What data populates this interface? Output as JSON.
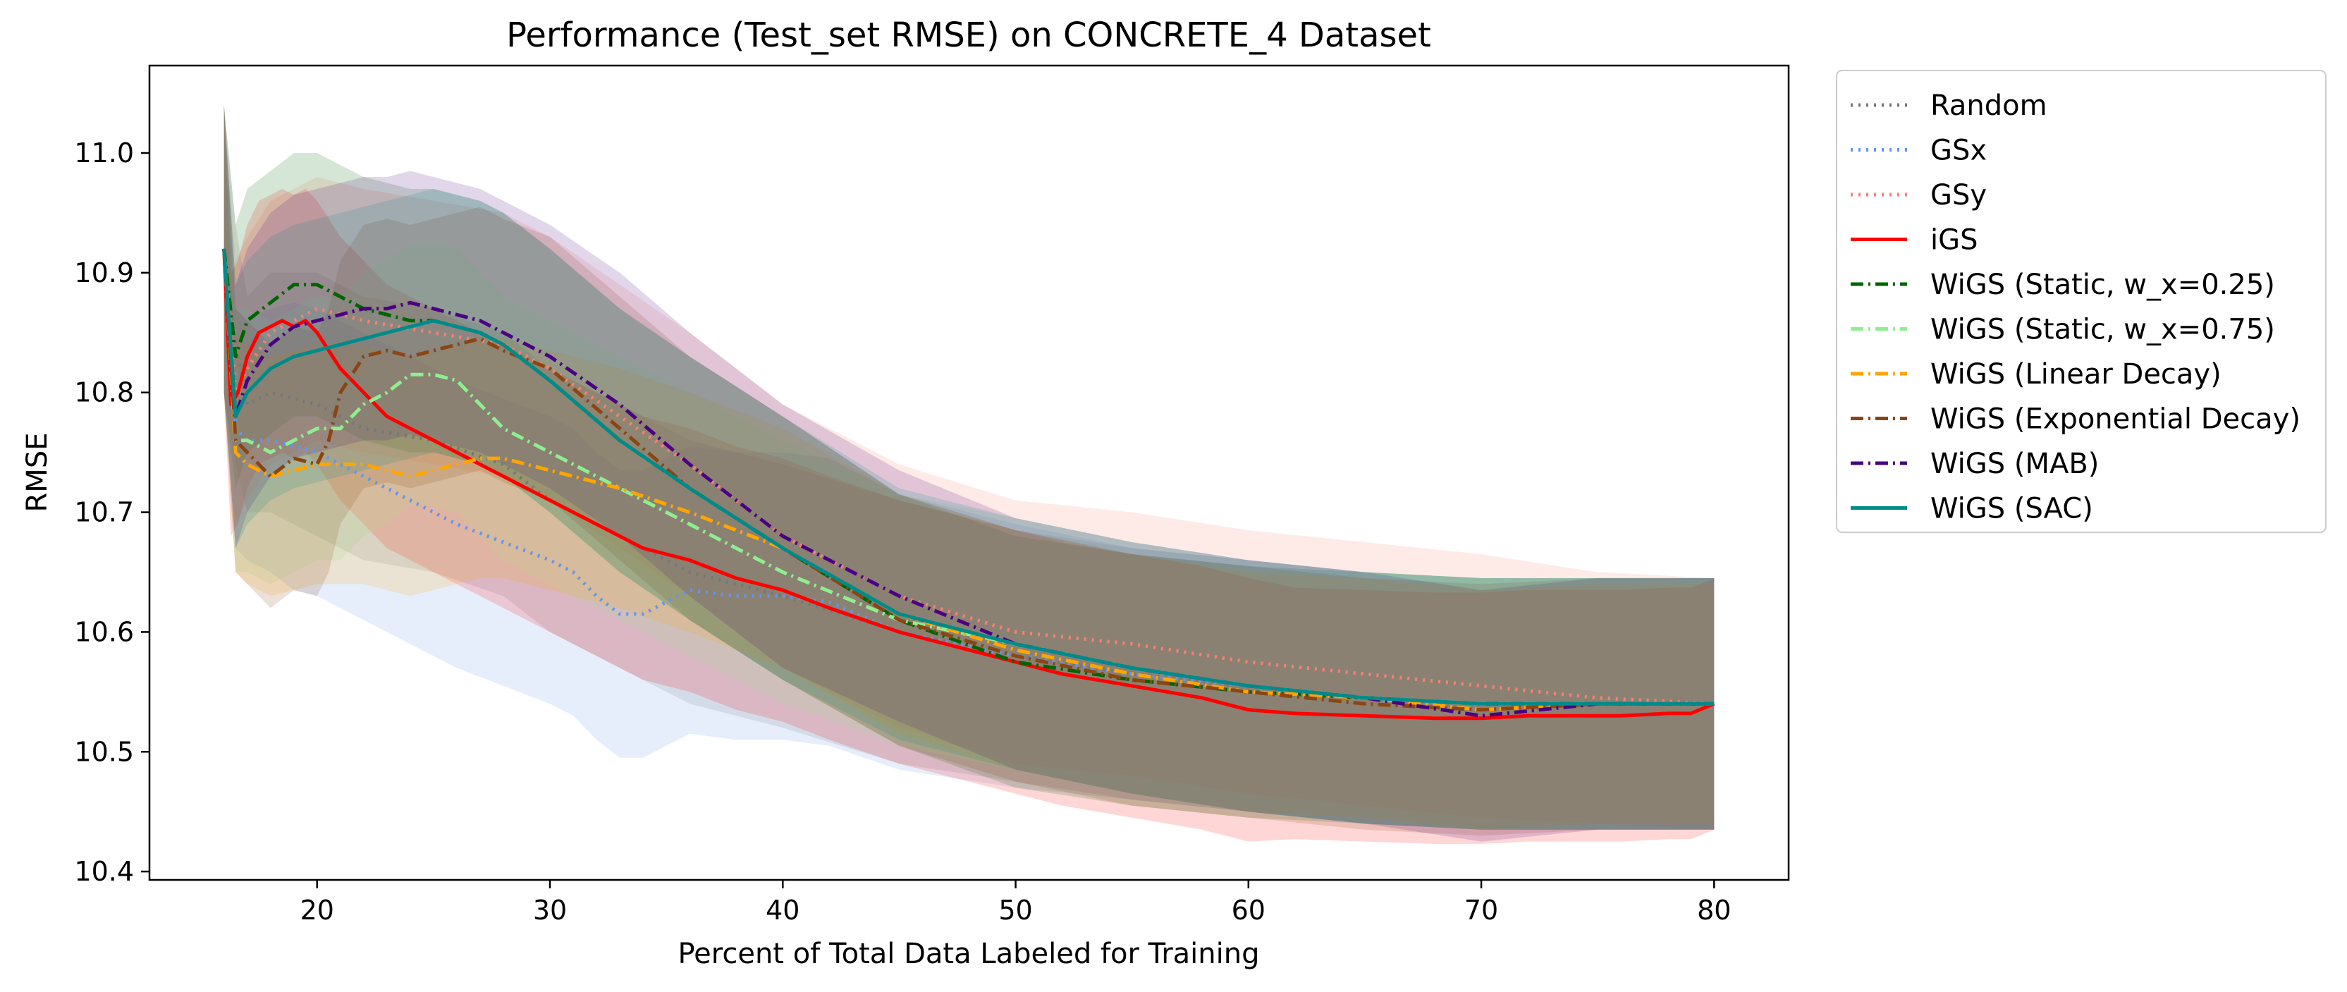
{
  "chart_data": {
    "type": "line",
    "title": "Performance (Test_set RMSE) on CONCRETE_4 Dataset",
    "xlabel": "Percent of Total Data Labeled for Training",
    "ylabel": "RMSE",
    "xlim": [
      12.8,
      83.2
    ],
    "ylim": [
      10.393,
      11.073
    ],
    "xticks": [
      20,
      30,
      40,
      50,
      60,
      70,
      80
    ],
    "yticks": [
      10.4,
      10.5,
      10.6,
      10.7,
      10.8,
      10.9,
      11.0
    ],
    "grid": false,
    "legend_position": "outside-right",
    "series": [
      {
        "name": "Random",
        "color": "#777777",
        "style": "dotted",
        "x": [
          16,
          16.5,
          17,
          18,
          20,
          22,
          25,
          28,
          30,
          33,
          36,
          40,
          45,
          50,
          55,
          60,
          65,
          70,
          75,
          80
        ],
        "y": [
          10.92,
          10.84,
          10.79,
          10.8,
          10.79,
          10.77,
          10.76,
          10.74,
          10.71,
          10.68,
          10.65,
          10.63,
          10.6,
          10.58,
          10.565,
          10.555,
          10.545,
          10.54,
          10.54,
          10.54
        ],
        "band": [
          0.12,
          0.1,
          0.09,
          0.1,
          0.11,
          0.11,
          0.11,
          0.11,
          0.11,
          0.11,
          0.11,
          0.11,
          0.11,
          0.105,
          0.105,
          0.105,
          0.105,
          0.105,
          0.105,
          0.105
        ]
      },
      {
        "name": "GSx",
        "color": "#6495ed",
        "style": "dotted",
        "x": [
          16,
          16.5,
          17,
          18,
          19,
          20,
          22,
          24,
          26,
          28,
          30,
          31,
          32,
          33,
          34,
          35,
          36,
          38,
          40,
          42,
          45,
          50,
          55,
          60,
          65,
          70,
          75,
          80
        ],
        "y": [
          10.92,
          10.77,
          10.76,
          10.76,
          10.755,
          10.75,
          10.73,
          10.71,
          10.69,
          10.675,
          10.66,
          10.65,
          10.63,
          10.615,
          10.615,
          10.625,
          10.635,
          10.63,
          10.63,
          10.625,
          10.6,
          10.58,
          10.565,
          10.555,
          10.545,
          10.54,
          10.54,
          10.54
        ],
        "band": [
          0.12,
          0.1,
          0.1,
          0.11,
          0.12,
          0.12,
          0.12,
          0.12,
          0.12,
          0.12,
          0.12,
          0.12,
          0.12,
          0.12,
          0.12,
          0.12,
          0.12,
          0.12,
          0.12,
          0.12,
          0.115,
          0.11,
          0.105,
          0.105,
          0.105,
          0.105,
          0.105,
          0.105
        ]
      },
      {
        "name": "GSy",
        "color": "#fa8072",
        "style": "dotted",
        "x": [
          16,
          16.5,
          17,
          18,
          20,
          22,
          25,
          28,
          30,
          33,
          36,
          40,
          45,
          50,
          55,
          60,
          65,
          70,
          75,
          80
        ],
        "y": [
          10.92,
          10.8,
          10.82,
          10.85,
          10.87,
          10.86,
          10.85,
          10.84,
          10.82,
          10.78,
          10.74,
          10.68,
          10.63,
          10.6,
          10.59,
          10.575,
          10.565,
          10.555,
          10.545,
          10.54
        ],
        "band": [
          0.12,
          0.11,
          0.11,
          0.11,
          0.11,
          0.11,
          0.11,
          0.11,
          0.11,
          0.11,
          0.11,
          0.11,
          0.11,
          0.11,
          0.11,
          0.11,
          0.11,
          0.11,
          0.105,
          0.105
        ]
      },
      {
        "name": "iGS",
        "color": "#ff0000",
        "style": "solid",
        "x": [
          16,
          16.3,
          16.6,
          17,
          17.5,
          18,
          18.5,
          19,
          19.5,
          20,
          21,
          22,
          23,
          24,
          25,
          26,
          27,
          28,
          30,
          32,
          34,
          36,
          38,
          40,
          42,
          45,
          48,
          50,
          52,
          55,
          58,
          60,
          62,
          65,
          68,
          70,
          72,
          74,
          76,
          78,
          79,
          80
        ],
        "y": [
          10.92,
          10.79,
          10.8,
          10.83,
          10.85,
          10.855,
          10.86,
          10.855,
          10.86,
          10.85,
          10.82,
          10.8,
          10.78,
          10.77,
          10.76,
          10.75,
          10.74,
          10.73,
          10.71,
          10.69,
          10.67,
          10.66,
          10.645,
          10.635,
          10.62,
          10.6,
          10.585,
          10.575,
          10.565,
          10.555,
          10.545,
          10.535,
          10.532,
          10.53,
          10.528,
          10.528,
          10.53,
          10.53,
          10.53,
          10.532,
          10.532,
          10.54
        ],
        "band": [
          0.12,
          0.11,
          0.11,
          0.11,
          0.11,
          0.11,
          0.11,
          0.11,
          0.11,
          0.11,
          0.11,
          0.11,
          0.11,
          0.11,
          0.11,
          0.11,
          0.11,
          0.11,
          0.11,
          0.11,
          0.11,
          0.11,
          0.11,
          0.11,
          0.11,
          0.11,
          0.11,
          0.11,
          0.11,
          0.11,
          0.11,
          0.11,
          0.105,
          0.105,
          0.105,
          0.105,
          0.105,
          0.105,
          0.105,
          0.105,
          0.105,
          0.105
        ]
      },
      {
        "name": "WiGS (Static, w_x=0.25)",
        "color": "#006400",
        "style": "dashdot",
        "x": [
          16,
          16.5,
          17,
          18,
          19,
          20,
          21,
          22,
          23,
          24,
          25,
          26,
          27,
          28,
          30,
          33,
          36,
          40,
          45,
          50,
          55,
          60,
          65,
          70,
          75,
          80
        ],
        "y": [
          10.92,
          10.83,
          10.86,
          10.875,
          10.89,
          10.89,
          10.88,
          10.87,
          10.865,
          10.86,
          10.86,
          10.855,
          10.85,
          10.84,
          10.81,
          10.76,
          10.72,
          10.67,
          10.61,
          10.575,
          10.56,
          10.55,
          10.545,
          10.54,
          10.54,
          10.54
        ],
        "band": [
          0.12,
          0.11,
          0.11,
          0.11,
          0.11,
          0.11,
          0.11,
          0.11,
          0.11,
          0.11,
          0.11,
          0.11,
          0.11,
          0.11,
          0.11,
          0.11,
          0.11,
          0.11,
          0.105,
          0.105,
          0.105,
          0.105,
          0.105,
          0.105,
          0.105,
          0.105
        ]
      },
      {
        "name": "WiGS (Static, w_x=0.75)",
        "color": "#90ee90",
        "style": "dashdot",
        "x": [
          16,
          16.5,
          17,
          18,
          19,
          20,
          21,
          22,
          23,
          24,
          25,
          26,
          27,
          28,
          30,
          33,
          36,
          40,
          45,
          50,
          55,
          60,
          65,
          70,
          75,
          80
        ],
        "y": [
          10.92,
          10.76,
          10.76,
          10.75,
          10.76,
          10.77,
          10.77,
          10.79,
          10.8,
          10.815,
          10.815,
          10.81,
          10.79,
          10.77,
          10.75,
          10.72,
          10.69,
          10.65,
          10.61,
          10.59,
          10.57,
          10.555,
          10.545,
          10.54,
          10.54,
          10.54
        ],
        "band": [
          0.12,
          0.11,
          0.11,
          0.11,
          0.11,
          0.11,
          0.11,
          0.11,
          0.11,
          0.11,
          0.11,
          0.11,
          0.11,
          0.11,
          0.11,
          0.11,
          0.11,
          0.11,
          0.105,
          0.105,
          0.105,
          0.105,
          0.105,
          0.105,
          0.105,
          0.105
        ]
      },
      {
        "name": "WiGS (Linear Decay)",
        "color": "#ffa500",
        "style": "dashdot",
        "x": [
          16,
          16.5,
          17,
          18,
          19,
          20,
          22,
          24,
          25,
          26,
          27,
          28,
          30,
          33,
          36,
          40,
          45,
          50,
          55,
          60,
          65,
          70,
          75,
          80
        ],
        "y": [
          10.92,
          10.75,
          10.74,
          10.73,
          10.735,
          10.74,
          10.74,
          10.73,
          10.735,
          10.74,
          10.745,
          10.745,
          10.735,
          10.72,
          10.7,
          10.67,
          10.615,
          10.585,
          10.565,
          10.55,
          10.545,
          10.535,
          10.54,
          10.54
        ],
        "band": [
          0.12,
          0.1,
          0.1,
          0.1,
          0.1,
          0.1,
          0.1,
          0.1,
          0.1,
          0.1,
          0.1,
          0.1,
          0.1,
          0.1,
          0.1,
          0.1,
          0.1,
          0.1,
          0.1,
          0.1,
          0.1,
          0.1,
          0.1,
          0.1
        ]
      },
      {
        "name": "WiGS (Exponential Decay)",
        "color": "#8b4513",
        "style": "dashdot",
        "x": [
          16,
          16.5,
          17,
          18,
          19,
          20,
          20.5,
          21,
          22,
          23,
          24,
          25,
          26,
          27,
          28,
          30,
          33,
          36,
          40,
          45,
          50,
          55,
          60,
          65,
          70,
          75,
          80
        ],
        "y": [
          10.92,
          10.76,
          10.75,
          10.73,
          10.745,
          10.74,
          10.76,
          10.8,
          10.83,
          10.835,
          10.83,
          10.835,
          10.84,
          10.845,
          10.835,
          10.82,
          10.77,
          10.72,
          10.67,
          10.61,
          10.58,
          10.56,
          10.55,
          10.54,
          10.535,
          10.54,
          10.54
        ],
        "band": [
          0.12,
          0.11,
          0.11,
          0.11,
          0.11,
          0.11,
          0.11,
          0.11,
          0.11,
          0.11,
          0.11,
          0.11,
          0.11,
          0.11,
          0.11,
          0.11,
          0.11,
          0.11,
          0.11,
          0.105,
          0.105,
          0.105,
          0.105,
          0.105,
          0.105,
          0.105,
          0.105
        ]
      },
      {
        "name": "WiGS (MAB)",
        "color": "#4b0082",
        "style": "dashdot",
        "x": [
          16,
          16.5,
          17,
          18,
          19,
          20,
          21,
          22,
          23,
          24,
          25,
          26,
          27,
          28,
          30,
          33,
          36,
          40,
          45,
          50,
          55,
          60,
          65,
          70,
          75,
          80
        ],
        "y": [
          10.92,
          10.78,
          10.81,
          10.84,
          10.855,
          10.86,
          10.865,
          10.87,
          10.87,
          10.875,
          10.87,
          10.865,
          10.86,
          10.85,
          10.83,
          10.79,
          10.74,
          10.68,
          10.63,
          10.59,
          10.57,
          10.555,
          10.545,
          10.53,
          10.54,
          10.54
        ],
        "band": [
          0.12,
          0.11,
          0.11,
          0.11,
          0.11,
          0.11,
          0.11,
          0.11,
          0.11,
          0.11,
          0.11,
          0.11,
          0.11,
          0.11,
          0.11,
          0.11,
          0.11,
          0.11,
          0.105,
          0.105,
          0.105,
          0.105,
          0.105,
          0.105,
          0.105,
          0.105
        ]
      },
      {
        "name": "WiGS (SAC)",
        "color": "#008b8b",
        "style": "solid",
        "x": [
          16,
          16.5,
          17,
          18,
          19,
          20,
          21,
          22,
          23,
          24,
          25,
          26,
          27,
          28,
          30,
          33,
          36,
          40,
          45,
          50,
          55,
          60,
          65,
          70,
          75,
          80
        ],
        "y": [
          10.92,
          10.78,
          10.8,
          10.82,
          10.83,
          10.835,
          10.84,
          10.845,
          10.85,
          10.855,
          10.86,
          10.855,
          10.85,
          10.84,
          10.81,
          10.76,
          10.72,
          10.67,
          10.615,
          10.59,
          10.57,
          10.555,
          10.545,
          10.54,
          10.54,
          10.54
        ],
        "band": [
          0.12,
          0.11,
          0.11,
          0.11,
          0.11,
          0.11,
          0.11,
          0.11,
          0.11,
          0.11,
          0.11,
          0.11,
          0.11,
          0.11,
          0.11,
          0.11,
          0.11,
          0.11,
          0.105,
          0.105,
          0.105,
          0.105,
          0.105,
          0.105,
          0.105,
          0.105
        ]
      }
    ]
  }
}
